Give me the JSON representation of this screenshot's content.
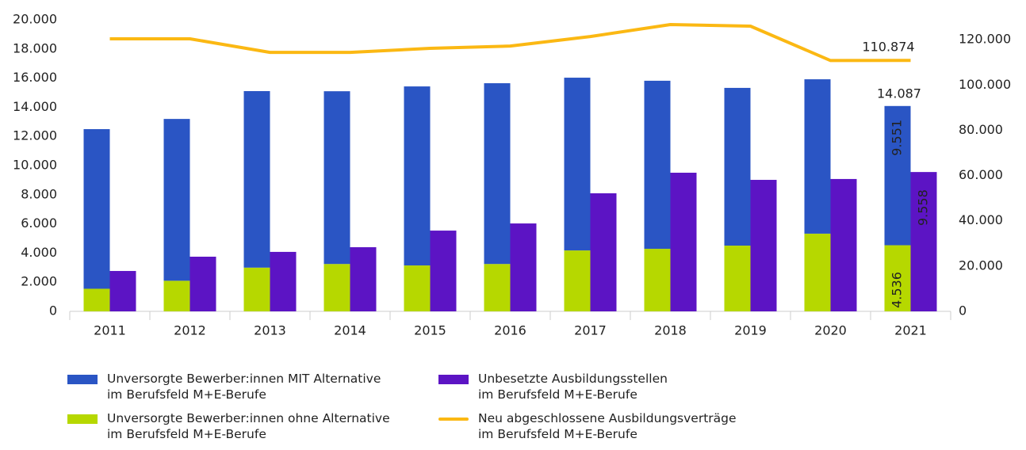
{
  "chart_data": {
    "type": "bar_line",
    "categories": [
      "2011",
      "2012",
      "2013",
      "2014",
      "2015",
      "2016",
      "2017",
      "2018",
      "2019",
      "2020",
      "2021"
    ],
    "series": [
      {
        "name": "Unversorgte Bewerber:innen MIT Alternative\nim Berufsfeld M+E-Berufe",
        "type": "stacked_bar",
        "color": "#2a55c4",
        "values": [
          10950,
          11100,
          12110,
          11850,
          12280,
          12400,
          11850,
          11530,
          10820,
          10590,
          9551
        ],
        "value_labels": [
          null,
          null,
          null,
          null,
          null,
          null,
          null,
          null,
          null,
          null,
          "9.551"
        ]
      },
      {
        "name": "Unbesetzte Ausbildungsstellen\nim Berufsfeld M+E-Berufe",
        "type": "bar",
        "color": "#5c14c4",
        "values": [
          2770,
          3750,
          4080,
          4400,
          5540,
          6030,
          8100,
          9510,
          9020,
          9080,
          9558
        ],
        "value_labels": [
          null,
          null,
          null,
          null,
          null,
          null,
          null,
          null,
          null,
          null,
          "9.558"
        ]
      },
      {
        "name": "Unversorgte Bewerber:innen ohne Alternative\nim Berufsfeld M+E-Berufe",
        "type": "stacked_bar",
        "color": "#b6d800",
        "values": [
          1550,
          2100,
          3000,
          3250,
          3150,
          3250,
          4180,
          4290,
          4510,
          5330,
          4536
        ],
        "value_labels": [
          null,
          null,
          null,
          null,
          null,
          null,
          null,
          null,
          null,
          null,
          "4.536"
        ]
      },
      {
        "name": "Neu abgeschlossene Ausbildungsverträge\nim Berufsfeld M+E-Berufe",
        "type": "line",
        "axis": "y2",
        "color": "#fbb813",
        "values": [
          120400,
          120400,
          114400,
          114400,
          116200,
          117200,
          121400,
          126700,
          126000,
          110800,
          110874
        ],
        "value_labels": [
          null,
          null,
          null,
          null,
          null,
          null,
          null,
          null,
          null,
          null,
          "110.874"
        ]
      }
    ],
    "annotations": [
      {
        "text": "14.087"
      }
    ],
    "ylim": [
      0,
      20000
    ],
    "yticks": [
      0,
      {
        "value": 2000,
        "label": "2.000"
      },
      {
        "value": 4000,
        "label": "4.000"
      },
      {
        "value": 6000,
        "label": "6.000"
      },
      {
        "value": 8000,
        "label": "8.000"
      },
      {
        "value": 10000,
        "label": "10.000"
      },
      {
        "value": 12000,
        "label": "12.000"
      },
      {
        "value": 14000,
        "label": "14.000"
      },
      {
        "value": 16000,
        "label": "16.000"
      },
      {
        "value": 18000,
        "label": "18.000"
      },
      {
        "value": 20000,
        "label": "20.000"
      }
    ],
    "y2lim": [
      0,
      128800
    ],
    "y2ticks": [
      0,
      {
        "value": 20000,
        "label": "20.000"
      },
      {
        "value": 40000,
        "label": "40.000"
      },
      {
        "value": 60000,
        "label": "60.000"
      },
      {
        "value": 80000,
        "label": "80.000"
      },
      {
        "value": 100000,
        "label": "100.000"
      },
      {
        "value": 120000,
        "label": "120.000"
      }
    ],
    "grid": false
  }
}
